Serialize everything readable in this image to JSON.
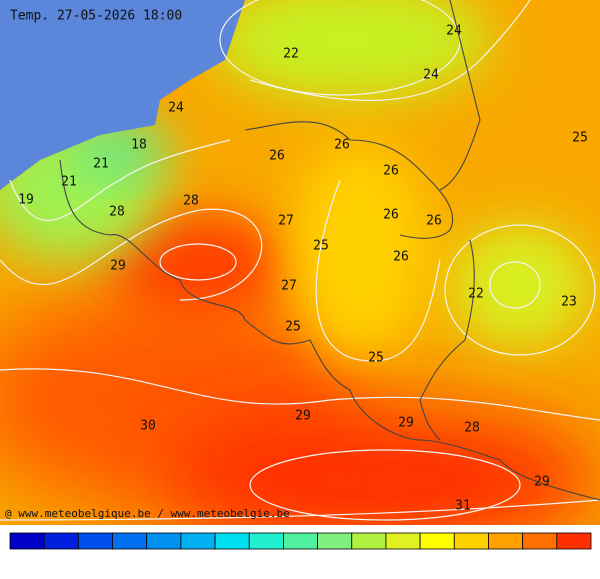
{
  "header": {
    "title": "Temp. 27-05-2026 18:00"
  },
  "labels": [
    24,
    22,
    24,
    24,
    25,
    18,
    26,
    26,
    21,
    26,
    21,
    19,
    28,
    28,
    26,
    26,
    27,
    25,
    26,
    29,
    27,
    22,
    23,
    25,
    25,
    29,
    29,
    30,
    28,
    29,
    31
  ],
  "footer": {
    "credit": "@ www.meteobelgique.be / www.meteobelgie.be"
  }
}
